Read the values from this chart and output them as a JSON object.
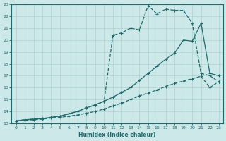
{
  "xlabel": "Humidex (Indice chaleur)",
  "bg_color": "#cde8e8",
  "grid_color": "#a8cccc",
  "line_color": "#1a6b6b",
  "xlim": [
    -0.5,
    23.5
  ],
  "ylim": [
    13,
    23
  ],
  "line1_x": [
    0,
    1,
    2,
    3,
    4,
    5,
    6,
    7,
    8,
    9,
    10,
    11,
    12,
    13,
    14,
    15,
    16,
    17,
    18,
    19,
    20,
    21,
    22,
    23
  ],
  "line1_y": [
    13.2,
    13.25,
    13.3,
    13.35,
    13.45,
    13.5,
    13.6,
    13.7,
    13.85,
    14.0,
    14.2,
    14.45,
    14.7,
    15.0,
    15.3,
    15.55,
    15.8,
    16.1,
    16.35,
    16.55,
    16.75,
    16.95,
    16.0,
    16.5
  ],
  "line2_x": [
    0,
    1,
    2,
    3,
    4,
    5,
    6,
    7,
    8,
    9,
    10,
    11,
    12,
    13,
    14,
    15,
    16,
    17,
    18,
    19,
    20,
    21,
    22,
    23
  ],
  "line2_y": [
    13.2,
    13.3,
    13.35,
    13.4,
    13.5,
    13.6,
    13.8,
    14.0,
    14.3,
    14.55,
    14.85,
    15.2,
    15.6,
    16.0,
    16.6,
    17.2,
    17.8,
    18.4,
    18.9,
    20.0,
    19.9,
    21.4,
    17.2,
    17.0
  ],
  "line3_x": [
    0,
    1,
    2,
    3,
    4,
    5,
    6,
    7,
    8,
    9,
    10,
    11,
    12,
    13,
    14,
    15,
    16,
    17,
    18,
    19,
    20,
    21,
    22,
    23
  ],
  "line3_y": [
    13.2,
    13.3,
    13.35,
    13.4,
    13.5,
    13.6,
    13.8,
    14.0,
    14.3,
    14.55,
    14.85,
    20.4,
    20.6,
    21.0,
    20.85,
    22.9,
    22.2,
    22.6,
    22.5,
    22.5,
    21.4,
    17.2,
    17.0,
    16.5
  ],
  "marker": "+",
  "markersize": 3.5,
  "linewidth": 0.9
}
